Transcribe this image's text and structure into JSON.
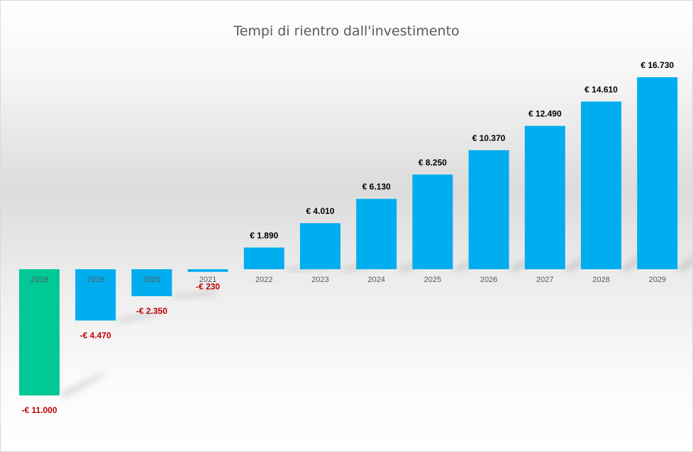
{
  "chart_data": {
    "type": "bar",
    "title": "Tempi di rientro dall'investimento",
    "xlabel": "",
    "ylabel": "",
    "ylim": [
      -11000,
      16730
    ],
    "categories": [
      "2019",
      "2019",
      "2020",
      "2021",
      "2022",
      "2023",
      "2024",
      "2025",
      "2026",
      "2027",
      "2028",
      "2029"
    ],
    "values": [
      -11000,
      -4470,
      -2350,
      -230,
      1890,
      4010,
      6130,
      8250,
      10370,
      12490,
      14610,
      16730
    ],
    "data_labels": [
      "-€ 11.000",
      "-€ 4.470",
      "-€ 2.350",
      "-€ 230",
      "€ 1.890",
      "€ 4.010",
      "€ 6.130",
      "€ 8.250",
      "€ 10.370",
      "€ 12.490",
      "€ 14.610",
      "€ 16.730"
    ],
    "bar_colors": [
      "#00c896",
      "#00aeef",
      "#00aeef",
      "#00aeef",
      "#00aeef",
      "#00aeef",
      "#00aeef",
      "#00aeef",
      "#00aeef",
      "#00aeef",
      "#00aeef",
      "#00aeef"
    ],
    "label_color_positive": "#000000",
    "label_color_negative": "#c00000",
    "grid": false,
    "legend": "none"
  }
}
